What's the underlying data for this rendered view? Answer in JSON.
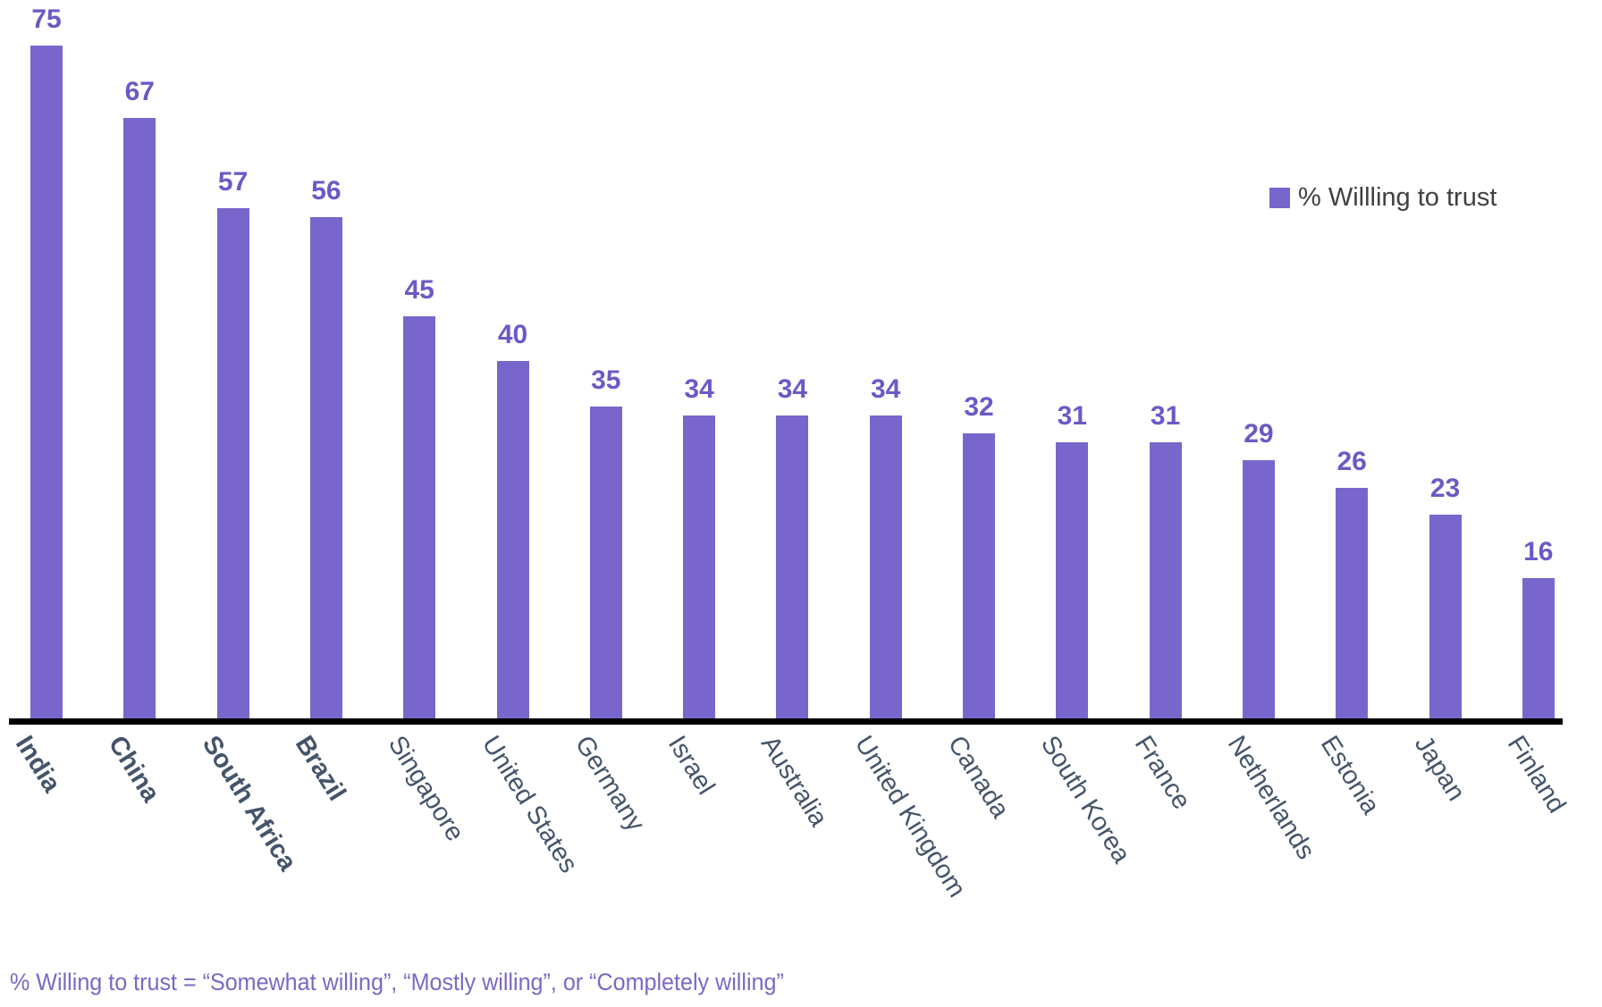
{
  "legend": {
    "label": "% Willling to trust",
    "swatch_icon": "legend-swatch-square"
  },
  "footnote": "% Willing to trust = “Somewhat willing”, “Mostly willing”, or “Completely willing”",
  "colors": {
    "bar": "#7866CC",
    "value_label": "#6C59C5",
    "axis_label": "#44546A",
    "legend_text": "#404040",
    "axis_line": "#000000",
    "footnote": "#7B68C4"
  },
  "chart_data": {
    "type": "bar",
    "title": "",
    "series_name": "% Willling to trust",
    "categories": [
      "India",
      "China",
      "South Africa",
      "Brazil",
      "Singapore",
      "United States",
      "Germany",
      "Israel",
      "Australia",
      "United Kingdom",
      "Canada",
      "South Korea",
      "France",
      "Netherlands",
      "Estonia",
      "Japan",
      "Finland"
    ],
    "values": [
      75,
      67,
      57,
      56,
      45,
      40,
      35,
      34,
      34,
      34,
      32,
      31,
      31,
      29,
      26,
      23,
      16
    ],
    "bold_categories": [
      "India",
      "China",
      "South Africa",
      "Brazil"
    ],
    "xlabel": "",
    "ylabel": "",
    "ylim": [
      0,
      80
    ],
    "grid": false,
    "y_axis_shown": false,
    "value_labels_shown": true,
    "category_label_rotation_deg": 58,
    "legend_position": "right"
  }
}
